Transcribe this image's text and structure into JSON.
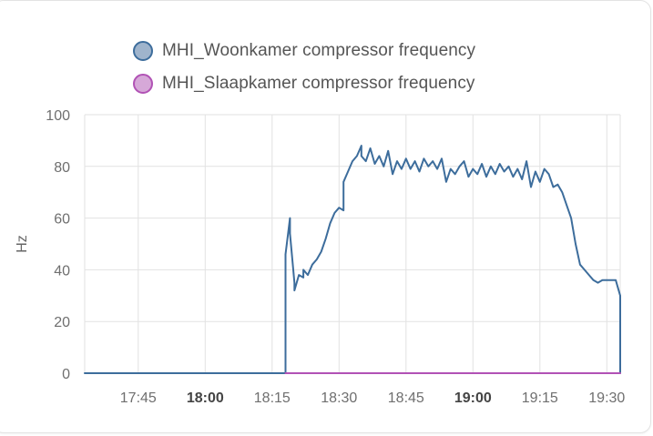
{
  "chart_data": {
    "type": "line",
    "title": "",
    "xlabel": "",
    "ylabel": "Hz",
    "ylim": [
      0,
      100
    ],
    "yticks": [
      "0",
      "20",
      "40",
      "60",
      "80",
      "100"
    ],
    "xlim": [
      "17:33",
      "19:33"
    ],
    "xticks": [
      {
        "label": "17:45",
        "time": "17:45",
        "bold": false
      },
      {
        "label": "18:00",
        "time": "18:00",
        "bold": true
      },
      {
        "label": "18:15",
        "time": "18:15",
        "bold": false
      },
      {
        "label": "18:30",
        "time": "18:30",
        "bold": false
      },
      {
        "label": "18:45",
        "time": "18:45",
        "bold": false
      },
      {
        "label": "19:00",
        "time": "19:00",
        "bold": true
      },
      {
        "label": "19:15",
        "time": "19:15",
        "bold": false
      },
      {
        "label": "19:30",
        "time": "19:30",
        "bold": false
      }
    ],
    "grid": true,
    "legend": "top",
    "series": [
      {
        "name": "MHI_Woonkamer compressor frequency",
        "color": "#3d6d9c",
        "fill": "#9fb4cc",
        "points": [
          [
            "17:33",
            0
          ],
          [
            "18:18",
            0
          ],
          [
            "18:18",
            46
          ],
          [
            "18:18",
            46
          ],
          [
            "18:19",
            60
          ],
          [
            "18:19",
            54
          ],
          [
            "18:20",
            35
          ],
          [
            "18:20",
            32
          ],
          [
            "18:21",
            38
          ],
          [
            "18:22",
            37
          ],
          [
            "18:22",
            40
          ],
          [
            "18:23",
            38
          ],
          [
            "18:24",
            42
          ],
          [
            "18:25",
            44
          ],
          [
            "18:26",
            47
          ],
          [
            "18:27",
            52
          ],
          [
            "18:28",
            58
          ],
          [
            "18:29",
            62
          ],
          [
            "18:30",
            64
          ],
          [
            "18:31",
            63
          ],
          [
            "18:31",
            74
          ],
          [
            "18:32",
            78
          ],
          [
            "18:33",
            82
          ],
          [
            "18:34",
            84
          ],
          [
            "18:35",
            88
          ],
          [
            "18:35",
            84
          ],
          [
            "18:36",
            82
          ],
          [
            "18:37",
            87
          ],
          [
            "18:38",
            81
          ],
          [
            "18:39",
            84
          ],
          [
            "18:40",
            80
          ],
          [
            "18:41",
            86
          ],
          [
            "18:42",
            77
          ],
          [
            "18:43",
            82
          ],
          [
            "18:44",
            79
          ],
          [
            "18:45",
            83
          ],
          [
            "18:46",
            79
          ],
          [
            "18:47",
            82
          ],
          [
            "18:48",
            78
          ],
          [
            "18:49",
            83
          ],
          [
            "18:50",
            80
          ],
          [
            "18:51",
            82
          ],
          [
            "18:52",
            79
          ],
          [
            "18:53",
            83
          ],
          [
            "18:54",
            74
          ],
          [
            "18:55",
            79
          ],
          [
            "18:56",
            77
          ],
          [
            "18:57",
            80
          ],
          [
            "18:58",
            82
          ],
          [
            "18:59",
            76
          ],
          [
            "19:00",
            79
          ],
          [
            "19:01",
            77
          ],
          [
            "19:02",
            81
          ],
          [
            "19:03",
            76
          ],
          [
            "19:04",
            80
          ],
          [
            "19:05",
            77
          ],
          [
            "19:06",
            81
          ],
          [
            "19:07",
            78
          ],
          [
            "19:08",
            80
          ],
          [
            "19:09",
            76
          ],
          [
            "19:10",
            79
          ],
          [
            "19:11",
            75
          ],
          [
            "19:12",
            82
          ],
          [
            "19:13",
            72
          ],
          [
            "19:14",
            78
          ],
          [
            "19:15",
            74
          ],
          [
            "19:16",
            79
          ],
          [
            "19:17",
            77
          ],
          [
            "19:18",
            72
          ],
          [
            "19:19",
            73
          ],
          [
            "19:20",
            70
          ],
          [
            "19:21",
            65
          ],
          [
            "19:22",
            60
          ],
          [
            "19:23",
            50
          ],
          [
            "19:24",
            42
          ],
          [
            "19:25",
            40
          ],
          [
            "19:26",
            38
          ],
          [
            "19:27",
            36
          ],
          [
            "19:28",
            35
          ],
          [
            "19:29",
            36
          ],
          [
            "19:30",
            36
          ],
          [
            "19:31",
            36
          ],
          [
            "19:32",
            36
          ],
          [
            "19:33",
            30
          ],
          [
            "19:33",
            0
          ]
        ]
      },
      {
        "name": "MHI_Slaapkamer compressor frequency",
        "color": "#b152b5",
        "fill": "#d6a8d8",
        "points": [
          [
            "18:18",
            0
          ],
          [
            "19:33",
            0
          ]
        ]
      }
    ]
  }
}
